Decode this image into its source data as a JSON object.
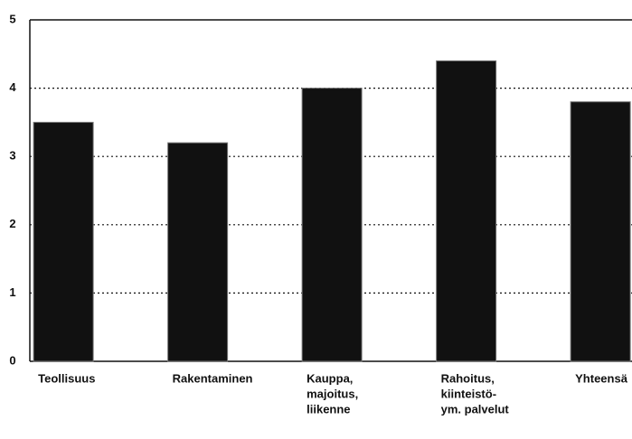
{
  "chart_data": {
    "type": "bar",
    "categories": [
      [
        "Teollisuus"
      ],
      [
        "Rakentaminen"
      ],
      [
        "Kauppa,",
        "majoitus,",
        "liikenne"
      ],
      [
        "Rahoitus,",
        "kiinteistö-",
        "ym. palvelut"
      ],
      [
        "Yhteensä"
      ]
    ],
    "values": [
      3.5,
      3.2,
      4.0,
      4.4,
      3.8
    ],
    "color": "#111111",
    "ylim": [
      0,
      5
    ],
    "yticks": [
      0,
      1,
      2,
      3,
      4,
      5
    ],
    "grid": true
  }
}
